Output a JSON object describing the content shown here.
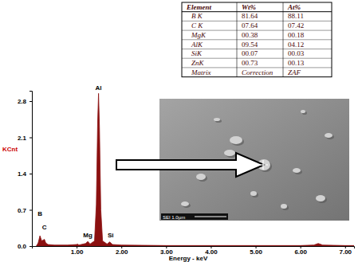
{
  "chart_data": {
    "type": "area",
    "x_label": "Energy - keV",
    "y_label": "KCnt",
    "color": "#8b1010",
    "x": [
      0.1,
      0.14,
      0.18,
      0.22,
      0.26,
      0.28,
      0.31,
      0.36,
      0.5,
      0.8,
      1.0,
      1.02,
      1.05,
      1.2,
      1.25,
      1.3,
      1.4,
      1.44,
      1.47,
      1.49,
      1.51,
      1.54,
      1.58,
      1.68,
      1.74,
      1.8,
      2.0,
      3.0,
      4.0,
      5.0,
      6.0,
      6.3,
      6.4,
      6.5,
      7.0,
      7.2
    ],
    "values": [
      0.0,
      0.06,
      0.2,
      0.1,
      0.12,
      0.13,
      0.06,
      0.03,
      0.02,
      0.02,
      0.03,
      0.04,
      0.02,
      0.05,
      0.09,
      0.04,
      0.1,
      0.8,
      2.4,
      2.95,
      2.3,
      0.7,
      0.1,
      0.04,
      0.08,
      0.03,
      0.02,
      0.01,
      0.01,
      0.01,
      0.01,
      0.02,
      0.05,
      0.02,
      0.01,
      0.01
    ],
    "xlim": [
      0,
      7.2
    ],
    "xticks": [
      {
        "value": 1,
        "label": "1.00"
      },
      {
        "value": 2,
        "label": "2.00"
      },
      {
        "value": 3,
        "label": "3.00"
      },
      {
        "value": 4,
        "label": "4.00"
      },
      {
        "value": 5,
        "label": "5.00"
      },
      {
        "value": 6,
        "label": "6.00"
      },
      {
        "value": 7,
        "label": "7.00"
      }
    ],
    "ylim": [
      0,
      3.0
    ],
    "yticks": [
      {
        "value": 0,
        "label": "0.0"
      },
      0.7,
      1.4,
      2.1,
      2.8
    ],
    "annotations": [
      {
        "text": "B",
        "x": 0.18,
        "y": 0.55
      },
      {
        "text": "C",
        "x": 0.28,
        "y": 0.3
      },
      {
        "text": "Mg",
        "x": 1.25,
        "y": 0.14
      },
      {
        "text": "Al",
        "x": 1.49,
        "y": 2.98
      },
      {
        "text": "Si",
        "x": 1.76,
        "y": 0.14
      }
    ]
  },
  "table": {
    "columns": [
      "Element",
      "Wt%",
      "At%"
    ],
    "rows": [
      [
        "B K",
        "81.64",
        "88.11"
      ],
      [
        "C K",
        "07.64",
        "07.42"
      ],
      [
        "MgK",
        "00.38",
        "00.18"
      ],
      [
        "AlK",
        "09.54",
        "04.12"
      ],
      [
        "SiK",
        "00.07",
        "00.03"
      ],
      [
        "ZnK",
        "00.73",
        "00.13"
      ],
      [
        "Matrix",
        "Correction",
        "ZAF"
      ]
    ]
  },
  "image_label": "SEI 1.0µm"
}
